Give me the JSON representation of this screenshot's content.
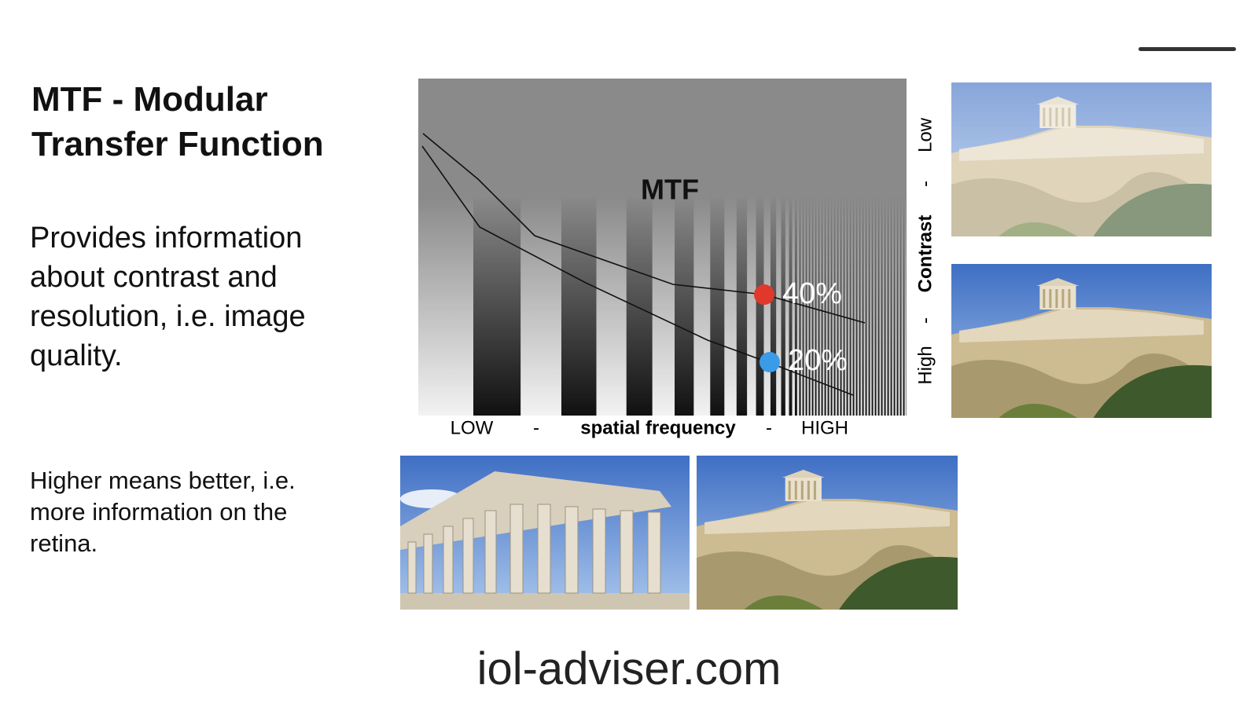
{
  "title": "MTF - Modular Transfer Function",
  "body": [
    "Provides information about contrast and resolution, i.e. image quality.",
    "Higher means better, i.e. more information on the retina."
  ],
  "diagram": {
    "title": "MTF",
    "x_axis": {
      "low": "LOW",
      "separator": "-",
      "label": "spatial frequency",
      "high": "HIGH"
    },
    "y_axis": {
      "low": "Low",
      "separator": "-",
      "label": "Contrast",
      "high": "High"
    },
    "points": [
      "40%",
      "20%"
    ]
  },
  "footer": "iol-adviser.com"
}
